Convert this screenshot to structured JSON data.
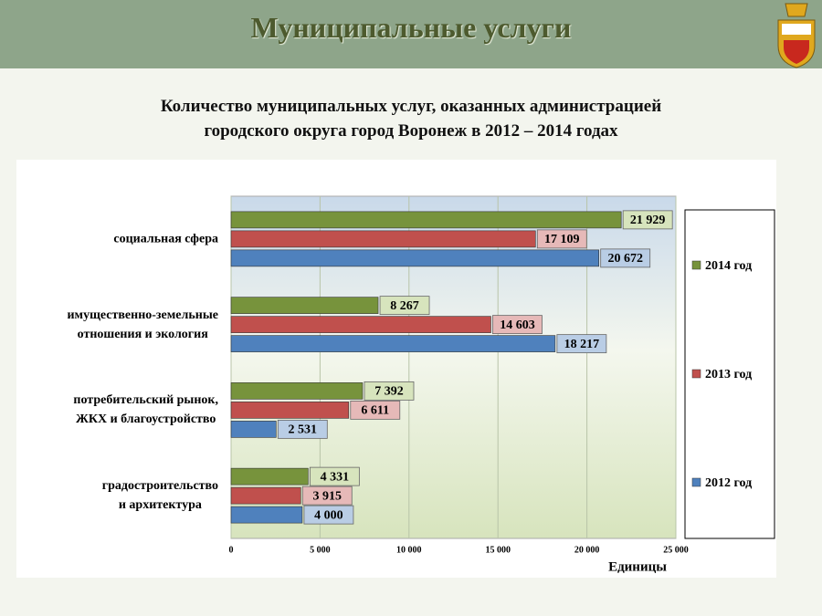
{
  "header": {
    "title": "Муниципальные услуги"
  },
  "chart_data": {
    "type": "bar",
    "orientation": "horizontal",
    "title": "Количество муниципальных услуг, оказанных администрацией\nгородского округа город Воронеж в 2012 – 2014 годах",
    "x_label": "Единицы",
    "categories": [
      "социальная сфера",
      "имущественно-земельные\nотношения и экология",
      "потребительский рынок,\nЖКХ и благоустройство",
      "градостроительство\nи архитектура"
    ],
    "series": [
      {
        "name": "2014 год",
        "color": "#77933c",
        "values": [
          21929,
          8267,
          7392,
          4331
        ],
        "value_labels": [
          "21 929",
          "8 267",
          "7 392",
          "4 331"
        ]
      },
      {
        "name": "2013 год",
        "color": "#c0504d",
        "values": [
          17109,
          14603,
          6611,
          3915
        ],
        "value_labels": [
          "17 109",
          "14 603",
          "6 611",
          "3 915"
        ]
      },
      {
        "name": "2012 год",
        "color": "#4f81bd",
        "values": [
          20672,
          18217,
          2531,
          4000
        ],
        "value_labels": [
          "20 672",
          "18 217",
          "2 531",
          "4 000"
        ]
      }
    ],
    "xlim": [
      0,
      25000
    ],
    "xticks": [
      0,
      {
        "value": 5000,
        "label": "5 000"
      },
      {
        "value": 10000,
        "label": "10 000"
      },
      {
        "value": 15000,
        "label": "15 000"
      },
      {
        "value": 20000,
        "label": "20 000"
      },
      {
        "value": 25000,
        "label": "25 000"
      }
    ],
    "grid": true,
    "legend": "right"
  }
}
